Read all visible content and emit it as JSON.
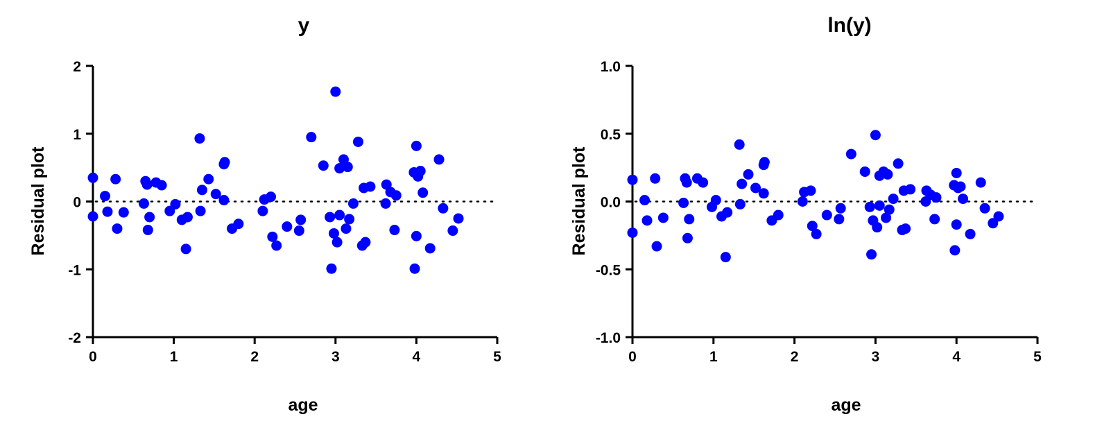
{
  "colors": {
    "point": "#0000ff",
    "axis": "#000000"
  },
  "chart_data": [
    {
      "type": "scatter",
      "title": "y",
      "xlabel": "age",
      "ylabel": "Residual plot",
      "xlim": [
        0,
        5
      ],
      "ylim": [
        -2,
        2
      ],
      "xticks": [
        "0",
        "1",
        "2",
        "3",
        "4",
        "5"
      ],
      "yticks": [
        "-2",
        "-1",
        "0",
        "1",
        "2"
      ],
      "reference_line": 0,
      "grid": false,
      "points": [
        [
          0.0,
          0.35
        ],
        [
          0.0,
          -0.22
        ],
        [
          0.15,
          0.08
        ],
        [
          0.18,
          -0.15
        ],
        [
          0.28,
          0.33
        ],
        [
          0.3,
          -0.4
        ],
        [
          0.38,
          -0.16
        ],
        [
          0.63,
          -0.03
        ],
        [
          0.65,
          0.3
        ],
        [
          0.67,
          0.25
        ],
        [
          0.68,
          -0.42
        ],
        [
          0.7,
          -0.23
        ],
        [
          0.78,
          0.28
        ],
        [
          0.85,
          0.24
        ],
        [
          0.95,
          -0.14
        ],
        [
          1.02,
          -0.04
        ],
        [
          1.1,
          -0.27
        ],
        [
          1.15,
          -0.7
        ],
        [
          1.17,
          -0.23
        ],
        [
          1.32,
          0.93
        ],
        [
          1.33,
          -0.14
        ],
        [
          1.35,
          0.17
        ],
        [
          1.43,
          0.33
        ],
        [
          1.52,
          0.11
        ],
        [
          1.62,
          0.55
        ],
        [
          1.63,
          0.58
        ],
        [
          1.62,
          0.02
        ],
        [
          1.72,
          -0.4
        ],
        [
          1.8,
          -0.33
        ],
        [
          2.1,
          -0.14
        ],
        [
          2.12,
          0.03
        ],
        [
          2.2,
          0.07
        ],
        [
          2.22,
          -0.52
        ],
        [
          2.27,
          -0.65
        ],
        [
          2.4,
          -0.37
        ],
        [
          2.55,
          -0.43
        ],
        [
          2.57,
          -0.27
        ],
        [
          2.7,
          0.95
        ],
        [
          2.85,
          0.53
        ],
        [
          2.93,
          -0.23
        ],
        [
          2.95,
          -0.99
        ],
        [
          2.98,
          -0.47
        ],
        [
          3.0,
          1.62
        ],
        [
          3.02,
          -0.6
        ],
        [
          3.05,
          -0.2
        ],
        [
          3.05,
          0.49
        ],
        [
          3.1,
          0.62
        ],
        [
          3.13,
          -0.4
        ],
        [
          3.15,
          0.51
        ],
        [
          3.17,
          -0.26
        ],
        [
          3.22,
          -0.03
        ],
        [
          3.28,
          0.88
        ],
        [
          3.33,
          -0.65
        ],
        [
          3.35,
          0.2
        ],
        [
          3.37,
          -0.6
        ],
        [
          3.43,
          0.22
        ],
        [
          3.62,
          -0.03
        ],
        [
          3.63,
          0.25
        ],
        [
          3.68,
          0.14
        ],
        [
          3.73,
          -0.42
        ],
        [
          3.75,
          0.09
        ],
        [
          3.97,
          0.43
        ],
        [
          3.98,
          -0.99
        ],
        [
          4.0,
          -0.51
        ],
        [
          4.0,
          0.82
        ],
        [
          4.02,
          0.37
        ],
        [
          4.05,
          0.45
        ],
        [
          4.08,
          0.13
        ],
        [
          4.17,
          -0.69
        ],
        [
          4.28,
          0.62
        ],
        [
          4.33,
          -0.1
        ],
        [
          4.45,
          -0.43
        ],
        [
          4.52,
          -0.25
        ]
      ]
    },
    {
      "type": "scatter",
      "title": "ln(y)",
      "xlabel": "age",
      "ylabel": "Residual  plot",
      "xlim": [
        0,
        5
      ],
      "ylim": [
        -1.0,
        1.0
      ],
      "xticks": [
        "0",
        "1",
        "2",
        "3",
        "4",
        "5"
      ],
      "yticks": [
        "-1.0",
        "-0.5",
        "0.0",
        "0.5",
        "1.0"
      ],
      "reference_line": 0,
      "grid": false,
      "points": [
        [
          0.0,
          0.16
        ],
        [
          0.0,
          -0.23
        ],
        [
          0.15,
          0.01
        ],
        [
          0.18,
          -0.14
        ],
        [
          0.28,
          0.17
        ],
        [
          0.3,
          -0.33
        ],
        [
          0.38,
          -0.12
        ],
        [
          0.63,
          -0.01
        ],
        [
          0.65,
          0.17
        ],
        [
          0.67,
          0.14
        ],
        [
          0.68,
          -0.27
        ],
        [
          0.7,
          -0.13
        ],
        [
          0.8,
          0.17
        ],
        [
          0.87,
          0.14
        ],
        [
          0.98,
          -0.04
        ],
        [
          1.03,
          0.01
        ],
        [
          1.1,
          -0.11
        ],
        [
          1.15,
          -0.41
        ],
        [
          1.17,
          -0.08
        ],
        [
          1.32,
          0.42
        ],
        [
          1.33,
          -0.02
        ],
        [
          1.35,
          0.13
        ],
        [
          1.43,
          0.2
        ],
        [
          1.52,
          0.1
        ],
        [
          1.62,
          0.27
        ],
        [
          1.63,
          0.29
        ],
        [
          1.62,
          0.06
        ],
        [
          1.72,
          -0.14
        ],
        [
          1.8,
          -0.1
        ],
        [
          2.1,
          0.0
        ],
        [
          2.12,
          0.07
        ],
        [
          2.2,
          0.08
        ],
        [
          2.22,
          -0.18
        ],
        [
          2.27,
          -0.24
        ],
        [
          2.4,
          -0.1
        ],
        [
          2.55,
          -0.13
        ],
        [
          2.57,
          -0.05
        ],
        [
          2.7,
          0.35
        ],
        [
          2.87,
          0.22
        ],
        [
          2.93,
          -0.04
        ],
        [
          2.95,
          -0.39
        ],
        [
          2.97,
          -0.14
        ],
        [
          3.0,
          0.49
        ],
        [
          3.02,
          -0.19
        ],
        [
          3.05,
          -0.03
        ],
        [
          3.05,
          0.19
        ],
        [
          3.1,
          0.22
        ],
        [
          3.13,
          -0.12
        ],
        [
          3.15,
          0.2
        ],
        [
          3.17,
          -0.06
        ],
        [
          3.22,
          0.02
        ],
        [
          3.28,
          0.28
        ],
        [
          3.33,
          -0.21
        ],
        [
          3.35,
          0.08
        ],
        [
          3.37,
          -0.2
        ],
        [
          3.43,
          0.09
        ],
        [
          3.62,
          0.0
        ],
        [
          3.63,
          0.08
        ],
        [
          3.68,
          0.05
        ],
        [
          3.73,
          -0.13
        ],
        [
          3.75,
          0.03
        ],
        [
          3.97,
          0.12
        ],
        [
          3.98,
          -0.36
        ],
        [
          4.0,
          -0.17
        ],
        [
          4.0,
          0.21
        ],
        [
          4.02,
          0.1
        ],
        [
          4.05,
          0.11
        ],
        [
          4.08,
          0.02
        ],
        [
          4.17,
          -0.24
        ],
        [
          4.3,
          0.14
        ],
        [
          4.35,
          -0.05
        ],
        [
          4.45,
          -0.16
        ],
        [
          4.52,
          -0.11
        ]
      ]
    }
  ]
}
